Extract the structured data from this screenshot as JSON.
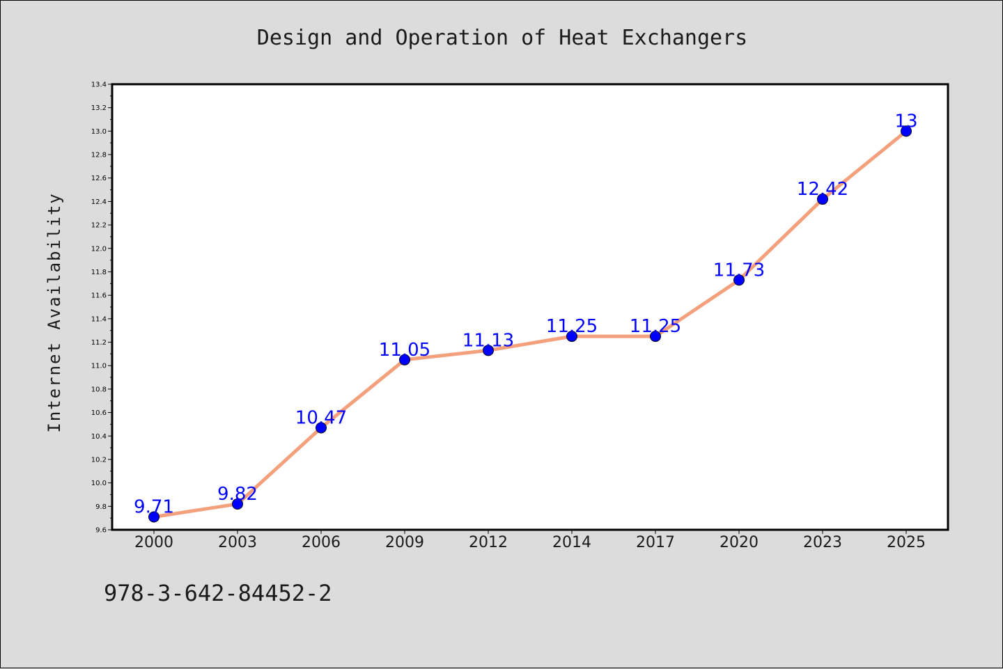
{
  "chart_data": {
    "type": "line",
    "title": "Design and Operation of Heat Exchangers",
    "xlabel": "",
    "ylabel": "Internet Availability",
    "categories": [
      "2000",
      "2003",
      "2006",
      "2009",
      "2012",
      "2014",
      "2017",
      "2020",
      "2023",
      "2025"
    ],
    "values": [
      9.71,
      9.82,
      10.47,
      11.05,
      11.13,
      11.25,
      11.25,
      11.73,
      12.42,
      13
    ],
    "data_labels": [
      "9.71",
      "9.82",
      "10.47",
      "11.05",
      "11.13",
      "11.25",
      "11.25",
      "11.73",
      "12.42",
      "13"
    ],
    "ylim": [
      9.6,
      13.4
    ],
    "y_ticks": [
      "9.6",
      "9.8",
      "10.0",
      "10.2",
      "10.4",
      "10.6",
      "10.8",
      "11.0",
      "11.2",
      "11.4",
      "11.6",
      "11.8",
      "12.0",
      "12.2",
      "12.4",
      "12.6",
      "12.8",
      "13.0",
      "13.2",
      "13.4"
    ],
    "grid": false,
    "colors": {
      "line": "#f4a07c",
      "marker": "#0000ff",
      "data_label": "#0000ff",
      "plot_background": "#ffffff",
      "figure_background": "#dcdcdc"
    }
  },
  "footer": {
    "isbn": "978-3-642-84452-2"
  }
}
